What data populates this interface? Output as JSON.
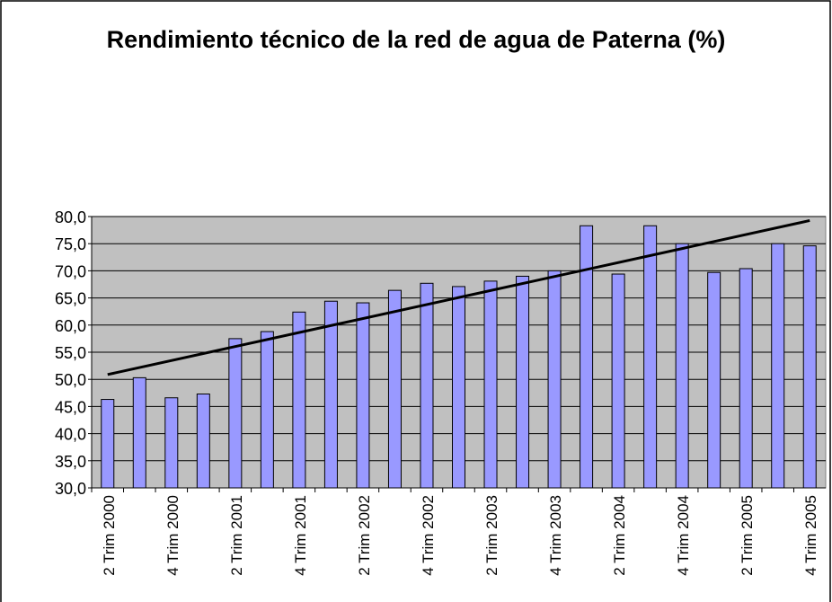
{
  "chart_data": {
    "type": "bar",
    "title": "Rendimiento técnico de la red de agua de Paterna (%)",
    "categories": [
      "2 Trim 2000",
      null,
      "4 Trim 2000",
      null,
      "2 Trim 2001",
      null,
      "4 Trim 2001",
      null,
      "2 Trim 2002",
      null,
      "4 Trim 2002",
      null,
      "2 Trim 2003",
      null,
      "4 Trim 2003",
      null,
      "2 Trim 2004",
      null,
      "4 Trim 2004",
      null,
      "2 Trim 2005",
      null,
      "4 Trim 2005"
    ],
    "values": [
      46.3,
      50.3,
      46.6,
      47.3,
      57.5,
      58.8,
      62.4,
      64.4,
      64.1,
      66.4,
      67.7,
      67.1,
      68.1,
      69.0,
      70.0,
      78.3,
      69.4,
      78.3,
      75.0,
      69.7,
      70.4,
      75.0,
      74.6
    ],
    "color": "#9999ff",
    "ylim": [
      30,
      80
    ],
    "yticks": [
      {
        "value": 30,
        "label": "30,0"
      },
      {
        "value": 35,
        "label": "35,0"
      },
      {
        "value": 40,
        "label": "40,0"
      },
      {
        "value": 45,
        "label": "45,0"
      },
      {
        "value": 50,
        "label": "50,0"
      },
      {
        "value": 55,
        "label": "55,0"
      },
      {
        "value": 60,
        "label": "60,0"
      },
      {
        "value": 65,
        "label": "65,0"
      },
      {
        "value": 70,
        "label": "70,0"
      },
      {
        "value": 75,
        "label": "75,0"
      },
      {
        "value": 80,
        "label": "80,0"
      }
    ],
    "grid": true,
    "trendline": "linear"
  }
}
